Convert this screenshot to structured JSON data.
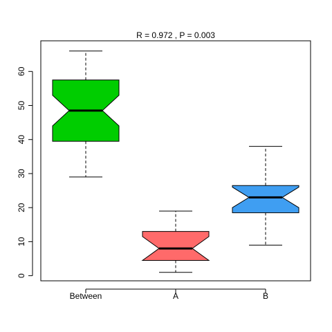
{
  "chart_data": {
    "type": "boxplot",
    "title": "R =  0.972 ,  P =  0.003",
    "xlabel": "",
    "ylabel": "",
    "ylim": [
      -1.5,
      69
    ],
    "yticks": [
      "0",
      "10",
      "20",
      "30",
      "40",
      "50",
      "60"
    ],
    "notched": true,
    "grid": false,
    "categories": [
      "Between",
      "A",
      "B"
    ],
    "boxes": [
      {
        "category": "Between",
        "min": 29,
        "q1": 39.5,
        "median": 48.5,
        "q3": 57.5,
        "max": 66,
        "notch_low": 44,
        "notch_high": 53,
        "color": "#00CD00"
      },
      {
        "category": "A",
        "min": 1,
        "q1": 4.5,
        "median": 8,
        "q3": 13,
        "max": 19,
        "notch_low": 4.5,
        "notch_high": 11.5,
        "color": "#FF6A6A"
      },
      {
        "category": "B",
        "min": 9,
        "q1": 18.5,
        "median": 23,
        "q3": 26.5,
        "max": 38,
        "notch_low": 20,
        "notch_high": 26,
        "color": "#3F9EF2"
      }
    ]
  }
}
